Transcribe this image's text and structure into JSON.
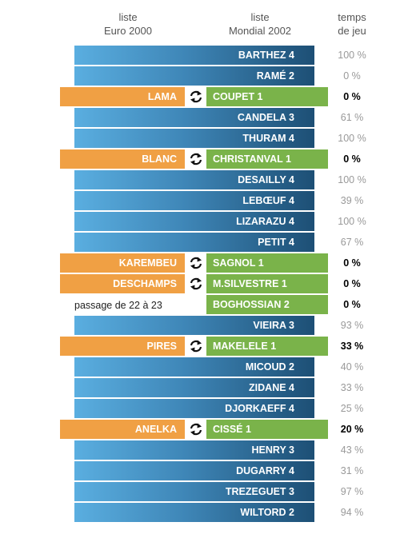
{
  "headers": {
    "euro": [
      "liste",
      "Euro 2000"
    ],
    "mondial": [
      "liste",
      "Mondial 2002"
    ],
    "temps": [
      "temps",
      "de jeu"
    ]
  },
  "note": "passage de 22 à 23",
  "colors": {
    "kept_gradient": [
      "#5aaee0",
      "#1d4f75"
    ],
    "replaced_euro": "#f0a044",
    "new_mondial": "#7ab34a"
  },
  "swap_icon": "swap-arrows-icon",
  "chart_data": {
    "type": "table",
    "rows": [
      {
        "euro": "",
        "mondial": "BARTHEZ 4",
        "pct": "100 %",
        "value": 100,
        "status": "kept"
      },
      {
        "euro": "",
        "mondial": "RAMÉ 2",
        "pct": "0 %",
        "value": 0,
        "status": "kept"
      },
      {
        "euro": "LAMA",
        "mondial": "COUPET 1",
        "pct": "0 %",
        "value": 0,
        "status": "swap"
      },
      {
        "euro": "",
        "mondial": "CANDELA 3",
        "pct": "61 %",
        "value": 61,
        "status": "kept"
      },
      {
        "euro": "",
        "mondial": "THURAM 4",
        "pct": "100 %",
        "value": 100,
        "status": "kept"
      },
      {
        "euro": "BLANC",
        "mondial": "CHRISTANVAL 1",
        "pct": "0 %",
        "value": 0,
        "status": "swap"
      },
      {
        "euro": "",
        "mondial": "DESAILLY 4",
        "pct": "100 %",
        "value": 100,
        "status": "kept"
      },
      {
        "euro": "",
        "mondial": "LEBŒUF 4",
        "pct": "39 %",
        "value": 39,
        "status": "kept"
      },
      {
        "euro": "",
        "mondial": "LIZARAZU 4",
        "pct": "100 %",
        "value": 100,
        "status": "kept"
      },
      {
        "euro": "",
        "mondial": "PETIT 4",
        "pct": "67 %",
        "value": 67,
        "status": "kept"
      },
      {
        "euro": "KAREMBEU",
        "mondial": "SAGNOL 1",
        "pct": "0 %",
        "value": 0,
        "status": "swap"
      },
      {
        "euro": "DESCHAMPS",
        "mondial": "M.SILVESTRE 1",
        "pct": "0 %",
        "value": 0,
        "status": "swap"
      },
      {
        "euro": "",
        "mondial": "BOGHOSSIAN 2",
        "pct": "0 %",
        "value": 0,
        "status": "added"
      },
      {
        "euro": "",
        "mondial": "VIEIRA 3",
        "pct": "93 %",
        "value": 93,
        "status": "kept"
      },
      {
        "euro": "PIRES",
        "mondial": "MAKELELE 1",
        "pct": "33 %",
        "value": 33,
        "status": "swap"
      },
      {
        "euro": "",
        "mondial": "MICOUD 2",
        "pct": "40 %",
        "value": 40,
        "status": "kept"
      },
      {
        "euro": "",
        "mondial": "ZIDANE 4",
        "pct": "33 %",
        "value": 33,
        "status": "kept"
      },
      {
        "euro": "",
        "mondial": "DJORKAEFF 4",
        "pct": "25 %",
        "value": 25,
        "status": "kept"
      },
      {
        "euro": "ANELKA",
        "mondial": "CISSÉ 1",
        "pct": "20 %",
        "value": 20,
        "status": "swap"
      },
      {
        "euro": "",
        "mondial": "HENRY 3",
        "pct": "43 %",
        "value": 43,
        "status": "kept"
      },
      {
        "euro": "",
        "mondial": "DUGARRY 4",
        "pct": "31 %",
        "value": 31,
        "status": "kept"
      },
      {
        "euro": "",
        "mondial": "TREZEGUET 3",
        "pct": "97 %",
        "value": 97,
        "status": "kept"
      },
      {
        "euro": "",
        "mondial": "WILTORD 2",
        "pct": "94 %",
        "value": 94,
        "status": "kept"
      }
    ]
  }
}
